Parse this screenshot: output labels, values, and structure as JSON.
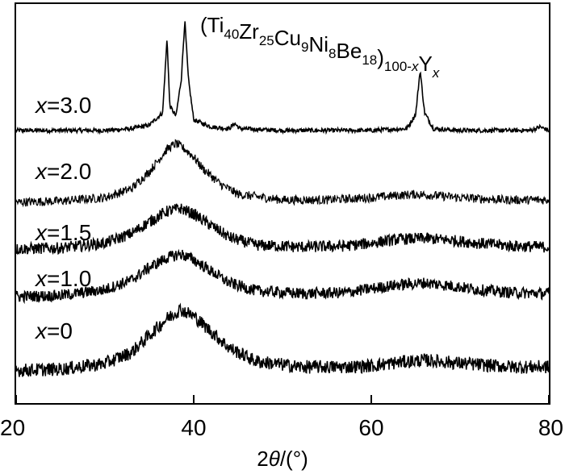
{
  "chart_data": {
    "type": "line",
    "title_parts": [
      {
        "text": "(Ti",
        "sub": false
      },
      {
        "text": "40",
        "sub": true
      },
      {
        "text": "Zr",
        "sub": false
      },
      {
        "text": "25",
        "sub": true
      },
      {
        "text": "Cu",
        "sub": false
      },
      {
        "text": "9",
        "sub": true
      },
      {
        "text": "Ni",
        "sub": false
      },
      {
        "text": "8",
        "sub": true
      },
      {
        "text": "Be",
        "sub": false
      },
      {
        "text": "18",
        "sub": true
      },
      {
        "text": ")",
        "sub": false
      },
      {
        "text": "100-x",
        "sub": true,
        "italic_char": "x"
      },
      {
        "text": "Y",
        "sub": false
      },
      {
        "text": "x",
        "sub": true,
        "italic": true
      }
    ],
    "xlabel": "2θ/(°)",
    "ylabel": "",
    "xlim": [
      20,
      80
    ],
    "xticks": [
      "20",
      "40",
      "60",
      "80"
    ],
    "y_ticks_shown": false,
    "grid": false,
    "series": [
      {
        "name": "x=3.0",
        "prefix": "x",
        "value": "=3.0",
        "baseline": 0.2,
        "noise": 0.012,
        "points": [
          [
            20,
            0.06
          ],
          [
            30,
            0.06
          ],
          [
            33,
            0.07
          ],
          [
            35,
            0.09
          ],
          [
            36.5,
            0.16
          ],
          [
            37.0,
            0.58
          ],
          [
            37.3,
            0.2
          ],
          [
            38.0,
            0.14
          ],
          [
            38.6,
            0.35
          ],
          [
            39.0,
            0.68
          ],
          [
            39.4,
            0.35
          ],
          [
            40,
            0.12
          ],
          [
            42,
            0.08
          ],
          [
            44,
            0.07
          ],
          [
            44.6,
            0.1
          ],
          [
            45.2,
            0.07
          ],
          [
            50,
            0.06
          ],
          [
            55,
            0.06
          ],
          [
            60,
            0.06
          ],
          [
            64,
            0.07
          ],
          [
            65,
            0.15
          ],
          [
            65.5,
            0.4
          ],
          [
            66,
            0.16
          ],
          [
            67,
            0.07
          ],
          [
            70,
            0.06
          ],
          [
            75,
            0.06
          ],
          [
            78,
            0.06
          ],
          [
            79,
            0.08
          ],
          [
            80,
            0.06
          ]
        ]
      },
      {
        "name": "x=2.0",
        "prefix": "x",
        "value": "=2.0",
        "baseline": 0.2,
        "noise": 0.04,
        "points": [
          [
            20,
            0.08
          ],
          [
            25,
            0.09
          ],
          [
            30,
            0.12
          ],
          [
            33,
            0.2
          ],
          [
            35,
            0.35
          ],
          [
            37,
            0.55
          ],
          [
            38,
            0.6
          ],
          [
            39,
            0.55
          ],
          [
            40,
            0.48
          ],
          [
            41,
            0.38
          ],
          [
            43,
            0.24
          ],
          [
            45,
            0.15
          ],
          [
            50,
            0.1
          ],
          [
            55,
            0.1
          ],
          [
            60,
            0.12
          ],
          [
            63,
            0.14
          ],
          [
            65,
            0.15
          ],
          [
            67,
            0.14
          ],
          [
            70,
            0.12
          ],
          [
            75,
            0.1
          ],
          [
            80,
            0.1
          ]
        ]
      },
      {
        "name": "x=1.5",
        "prefix": "x",
        "value": "=1.5",
        "baseline": 0.2,
        "noise": 0.06,
        "points": [
          [
            20,
            0.06
          ],
          [
            25,
            0.07
          ],
          [
            30,
            0.12
          ],
          [
            33,
            0.22
          ],
          [
            35,
            0.34
          ],
          [
            37,
            0.45
          ],
          [
            38.5,
            0.48
          ],
          [
            40,
            0.42
          ],
          [
            42,
            0.3
          ],
          [
            44,
            0.18
          ],
          [
            47,
            0.1
          ],
          [
            52,
            0.08
          ],
          [
            57,
            0.09
          ],
          [
            60,
            0.12
          ],
          [
            63,
            0.16
          ],
          [
            66,
            0.17
          ],
          [
            69,
            0.15
          ],
          [
            72,
            0.12
          ],
          [
            76,
            0.09
          ],
          [
            80,
            0.08
          ]
        ]
      },
      {
        "name": "x=1.0",
        "prefix": "x",
        "value": "=1.0",
        "baseline": 0.2,
        "noise": 0.06,
        "points": [
          [
            20,
            0.06
          ],
          [
            25,
            0.07
          ],
          [
            30,
            0.13
          ],
          [
            33,
            0.23
          ],
          [
            35,
            0.36
          ],
          [
            37,
            0.46
          ],
          [
            38.5,
            0.5
          ],
          [
            40,
            0.44
          ],
          [
            42,
            0.32
          ],
          [
            44,
            0.2
          ],
          [
            47,
            0.12
          ],
          [
            52,
            0.09
          ],
          [
            57,
            0.1
          ],
          [
            60,
            0.14
          ],
          [
            63,
            0.18
          ],
          [
            66,
            0.2
          ],
          [
            69,
            0.17
          ],
          [
            72,
            0.13
          ],
          [
            76,
            0.1
          ],
          [
            80,
            0.09
          ]
        ]
      },
      {
        "name": "x=0",
        "prefix": "x",
        "value": "=0",
        "baseline": 0.2,
        "noise": 0.06,
        "points": [
          [
            20,
            0.04
          ],
          [
            25,
            0.05
          ],
          [
            30,
            0.1
          ],
          [
            33,
            0.2
          ],
          [
            35,
            0.35
          ],
          [
            37,
            0.5
          ],
          [
            38.5,
            0.58
          ],
          [
            40,
            0.52
          ],
          [
            42,
            0.38
          ],
          [
            44,
            0.24
          ],
          [
            47,
            0.12
          ],
          [
            52,
            0.07
          ],
          [
            57,
            0.07
          ],
          [
            60,
            0.08
          ],
          [
            63,
            0.11
          ],
          [
            66,
            0.13
          ],
          [
            69,
            0.11
          ],
          [
            72,
            0.09
          ],
          [
            76,
            0.07
          ],
          [
            80,
            0.07
          ]
        ]
      }
    ]
  }
}
